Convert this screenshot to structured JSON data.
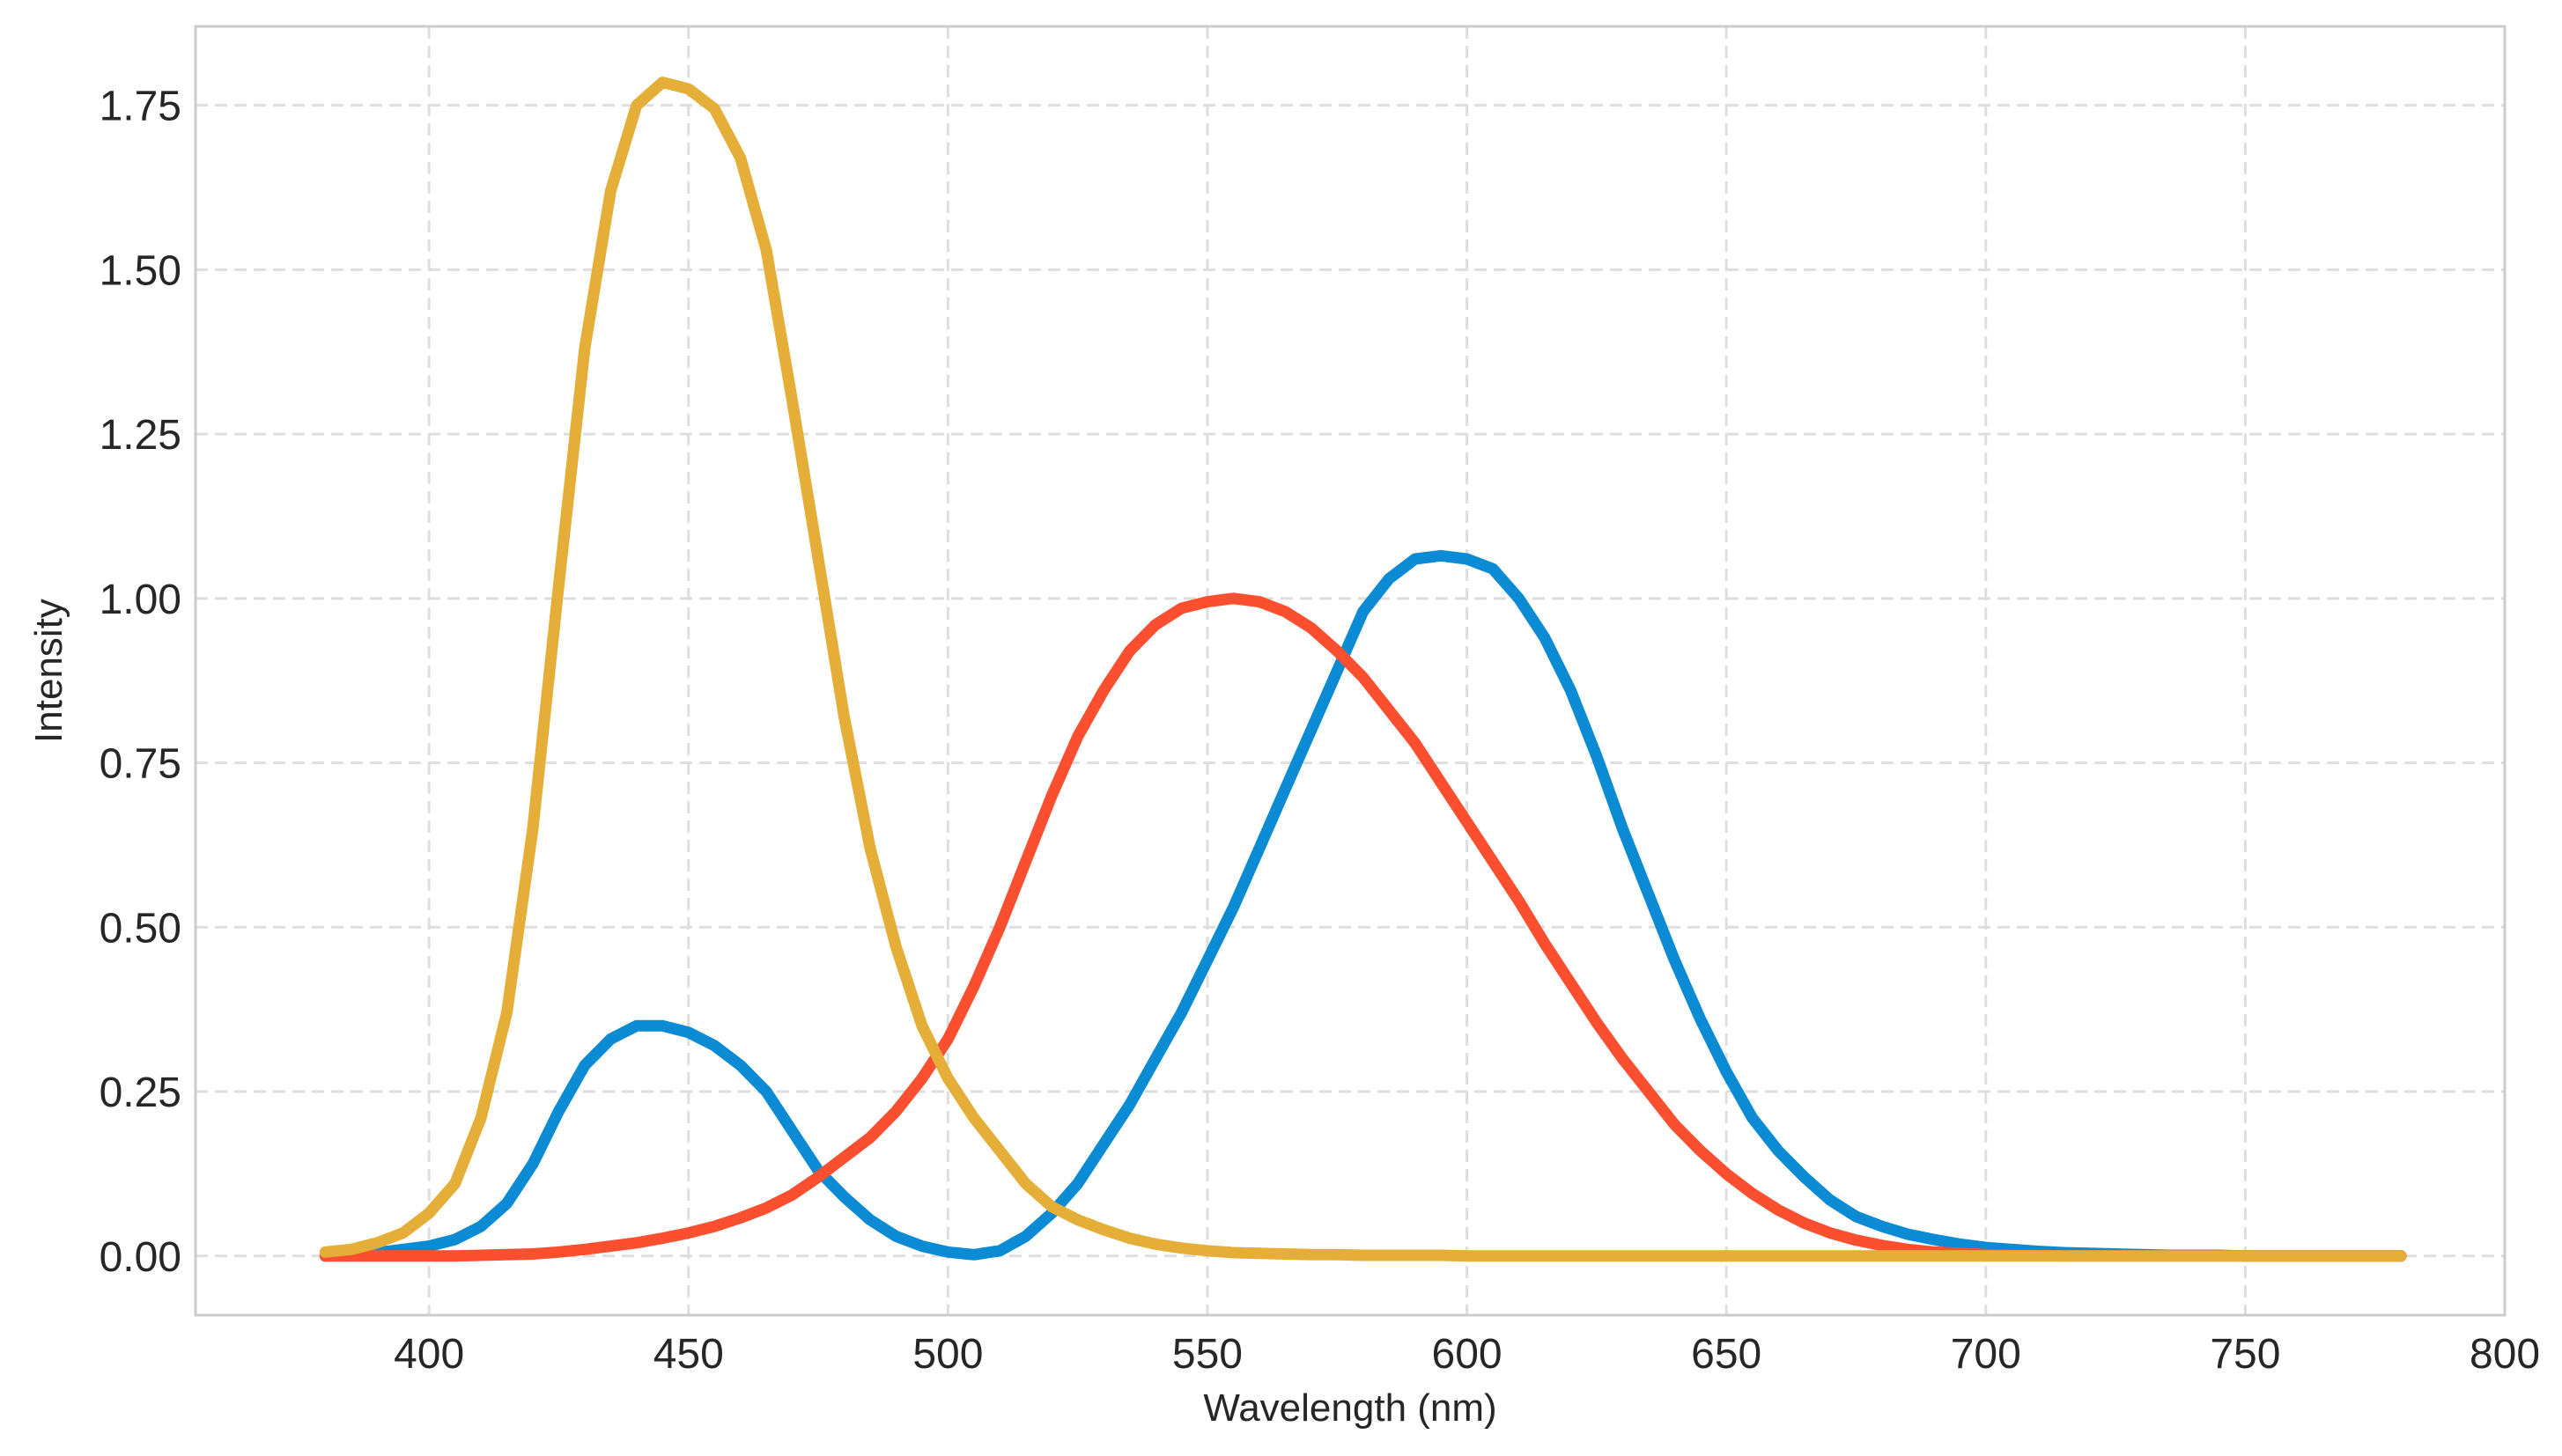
{
  "chart_data": {
    "type": "line",
    "title": "",
    "xlabel": "Wavelength (nm)",
    "ylabel": "Intensity",
    "xlim": [
      355,
      800
    ],
    "ylim": [
      -0.09,
      1.87
    ],
    "xticks": [
      400,
      450,
      500,
      550,
      600,
      650,
      700,
      750,
      800
    ],
    "xtick_labels": [
      "400",
      "450",
      "500",
      "550",
      "600",
      "650",
      "700",
      "750",
      "800"
    ],
    "yticks": [
      0.0,
      0.25,
      0.5,
      0.75,
      1.0,
      1.25,
      1.5,
      1.75
    ],
    "ytick_labels": [
      "0.00",
      "0.25",
      "0.50",
      "0.75",
      "1.00",
      "1.25",
      "1.50",
      "1.75"
    ],
    "grid": true,
    "legend": false,
    "x": [
      380,
      385,
      390,
      395,
      400,
      405,
      410,
      415,
      420,
      425,
      430,
      435,
      440,
      445,
      450,
      455,
      460,
      465,
      470,
      475,
      480,
      485,
      490,
      495,
      500,
      505,
      510,
      515,
      520,
      525,
      530,
      535,
      540,
      545,
      550,
      555,
      560,
      565,
      570,
      575,
      580,
      585,
      590,
      595,
      600,
      605,
      610,
      615,
      620,
      625,
      630,
      635,
      640,
      645,
      650,
      655,
      660,
      665,
      670,
      675,
      680,
      685,
      690,
      695,
      700,
      705,
      710,
      715,
      720,
      725,
      730,
      735,
      740,
      745,
      750,
      755,
      760,
      765,
      770,
      775,
      780
    ],
    "series": [
      {
        "color": "#0a8bd4",
        "values": [
          0.0,
          0.002,
          0.005,
          0.01,
          0.015,
          0.025,
          0.045,
          0.08,
          0.14,
          0.22,
          0.29,
          0.33,
          0.35,
          0.35,
          0.34,
          0.32,
          0.29,
          0.25,
          0.19,
          0.13,
          0.09,
          0.055,
          0.03,
          0.015,
          0.006,
          0.002,
          0.008,
          0.03,
          0.065,
          0.11,
          0.17,
          0.23,
          0.3,
          0.37,
          0.45,
          0.53,
          0.62,
          0.71,
          0.8,
          0.89,
          0.98,
          1.03,
          1.06,
          1.065,
          1.06,
          1.045,
          1.0,
          0.94,
          0.86,
          0.76,
          0.65,
          0.55,
          0.45,
          0.36,
          0.28,
          0.21,
          0.16,
          0.12,
          0.085,
          0.06,
          0.045,
          0.033,
          0.025,
          0.018,
          0.013,
          0.01,
          0.007,
          0.005,
          0.004,
          0.003,
          0.002,
          0.001,
          0.001,
          0.001,
          0.0,
          0.0,
          0.0,
          0.0,
          0.0,
          0.0,
          0.0
        ]
      },
      {
        "color": "#fc4f30",
        "values": [
          0.0,
          0.0,
          0.0,
          0.0,
          0.0,
          0.0,
          0.001,
          0.002,
          0.003,
          0.006,
          0.01,
          0.015,
          0.02,
          0.027,
          0.035,
          0.045,
          0.058,
          0.073,
          0.093,
          0.12,
          0.15,
          0.18,
          0.22,
          0.27,
          0.33,
          0.41,
          0.5,
          0.6,
          0.7,
          0.79,
          0.86,
          0.92,
          0.96,
          0.985,
          0.995,
          1.0,
          0.995,
          0.98,
          0.955,
          0.92,
          0.88,
          0.83,
          0.78,
          0.72,
          0.66,
          0.6,
          0.54,
          0.475,
          0.415,
          0.355,
          0.3,
          0.25,
          0.2,
          0.16,
          0.125,
          0.095,
          0.07,
          0.05,
          0.035,
          0.024,
          0.016,
          0.01,
          0.006,
          0.004,
          0.002,
          0.001,
          0.001,
          0.0,
          0.0,
          0.0,
          0.0,
          0.0,
          0.0,
          0.0,
          0.0,
          0.0,
          0.0,
          0.0,
          0.0,
          0.0,
          0.0
        ]
      },
      {
        "color": "#e5ae38",
        "values": [
          0.006,
          0.01,
          0.02,
          0.035,
          0.065,
          0.11,
          0.21,
          0.37,
          0.65,
          1.02,
          1.38,
          1.62,
          1.75,
          1.785,
          1.775,
          1.745,
          1.67,
          1.53,
          1.3,
          1.06,
          0.82,
          0.62,
          0.47,
          0.35,
          0.27,
          0.21,
          0.16,
          0.11,
          0.075,
          0.055,
          0.04,
          0.027,
          0.018,
          0.012,
          0.008,
          0.005,
          0.004,
          0.003,
          0.002,
          0.002,
          0.001,
          0.001,
          0.001,
          0.001,
          0.0,
          0.0,
          0.0,
          0.0,
          0.0,
          0.0,
          0.0,
          0.0,
          0.0,
          0.0,
          0.0,
          0.0,
          0.0,
          0.0,
          0.0,
          0.0,
          0.0,
          0.0,
          0.0,
          0.0,
          0.0,
          0.0,
          0.0,
          0.0,
          0.0,
          0.0,
          0.0,
          0.0,
          0.0,
          0.0,
          0.0,
          0.0,
          0.0,
          0.0,
          0.0,
          0.0,
          0.0
        ]
      }
    ]
  }
}
